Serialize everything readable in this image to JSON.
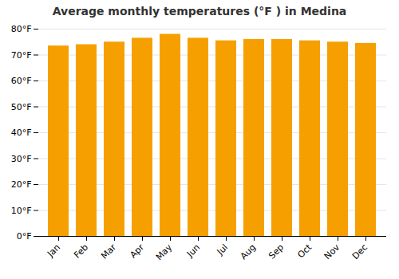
{
  "chart_data": {
    "type": "bar",
    "title": "Average monthly temperatures (°F ) in Medina",
    "categories": [
      "Jan",
      "Feb",
      "Mar",
      "Apr",
      "May",
      "Jun",
      "Jul",
      "Aug",
      "Sep",
      "Oct",
      "Nov",
      "Dec"
    ],
    "values": [
      73.5,
      74.0,
      75.0,
      76.5,
      78.0,
      76.5,
      75.5,
      76.0,
      76.0,
      75.5,
      75.0,
      74.5
    ],
    "color": "#F5A000",
    "ylim": [
      0,
      80
    ],
    "yticks": [
      {
        "value": 0,
        "label": "0°F"
      },
      {
        "value": 10,
        "label": "10°F"
      },
      {
        "value": 20,
        "label": "20°F"
      },
      {
        "value": 30,
        "label": "30°F"
      },
      {
        "value": 40,
        "label": "40°F"
      },
      {
        "value": 50,
        "label": "50°F"
      },
      {
        "value": 60,
        "label": "60°F"
      },
      {
        "value": 70,
        "label": "70°F"
      },
      {
        "value": 80,
        "label": "80°F"
      }
    ],
    "grid": true
  }
}
